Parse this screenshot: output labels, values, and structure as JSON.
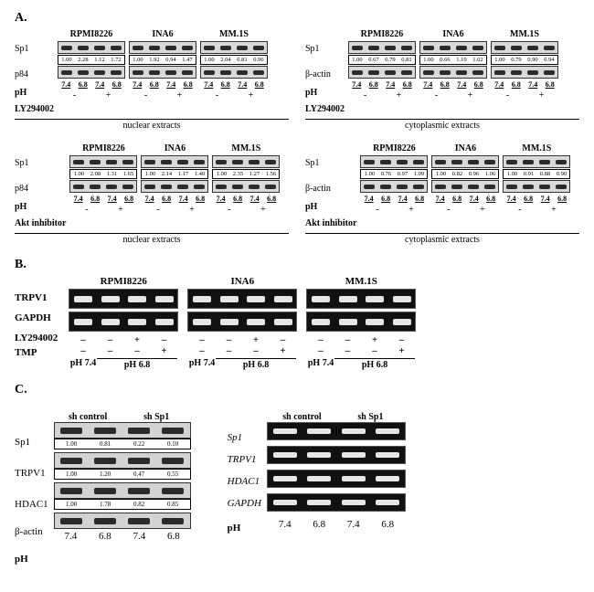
{
  "panelA": {
    "label": "A.",
    "cells": [
      "RPMI8226",
      "INA6",
      "MM.1S"
    ],
    "ph_values": [
      "7.4",
      "6.8",
      "7.4",
      "6.8"
    ],
    "inhibitors": [
      "LY294002",
      "Akt inhibitor"
    ],
    "rowlabels_nuclear": {
      "sp1": "Sp1",
      "loading": "p84"
    },
    "rowlabels_cyto": {
      "sp1": "Sp1",
      "loading": "β-actin"
    },
    "extract_labels": {
      "nuclear": "nuclear extracts",
      "cyto": "cytoplasmic extracts"
    },
    "ph_label": "pH",
    "inh_states": [
      "-",
      "+"
    ],
    "blocks": [
      {
        "inhibitor": "LY294002",
        "nuclear": [
          {
            "cell": "RPMI8226",
            "vals": [
              "1.00",
              "2.28",
              "1.12",
              "1.72"
            ]
          },
          {
            "cell": "INA6",
            "vals": [
              "1.00",
              "1.92",
              "0.94",
              "1.47"
            ]
          },
          {
            "cell": "MM.1S",
            "vals": [
              "1.00",
              "2.04",
              "0.81",
              "0.96"
            ]
          }
        ],
        "cyto": [
          {
            "cell": "RPMI8226",
            "vals": [
              "1.00",
              "0.67",
              "0.79",
              "0.81"
            ]
          },
          {
            "cell": "INA6",
            "vals": [
              "1.00",
              "0.66",
              "1.19",
              "1.02"
            ]
          },
          {
            "cell": "MM.1S",
            "vals": [
              "1.00",
              "0.79",
              "0.90",
              "0.94"
            ]
          }
        ]
      },
      {
        "inhibitor": "Akt inhibitor",
        "nuclear": [
          {
            "cell": "RPMI8226",
            "vals": [
              "1.00",
              "2.08",
              "1.31",
              "1.65"
            ]
          },
          {
            "cell": "INA6",
            "vals": [
              "1.00",
              "2.14",
              "1.17",
              "1.40"
            ]
          },
          {
            "cell": "MM.1S",
            "vals": [
              "1.00",
              "2.35",
              "1.27",
              "1.56"
            ]
          }
        ],
        "cyto": [
          {
            "cell": "RPMI8226",
            "vals": [
              "1.00",
              "0.76",
              "0.97",
              "1.09"
            ]
          },
          {
            "cell": "INA6",
            "vals": [
              "1.00",
              "0.82",
              "0.96",
              "1.06"
            ]
          },
          {
            "cell": "MM.1S",
            "vals": [
              "1.00",
              "0.91",
              "0.88",
              "0.90"
            ]
          }
        ]
      }
    ]
  },
  "panelB": {
    "label": "B.",
    "cells": [
      "RPMI8226",
      "INA6",
      "MM.1S"
    ],
    "genes": [
      "TRPV1",
      "GAPDH"
    ],
    "conds": [
      "LY294002",
      "TMP"
    ],
    "cond_matrix": [
      [
        "–",
        "–",
        "+",
        "–"
      ],
      [
        "–",
        "–",
        "–",
        "+"
      ]
    ],
    "ph_row": [
      "pH 7.4",
      "pH 6.8"
    ]
  },
  "panelC": {
    "label": "C.",
    "headers": [
      "sh control",
      "sh Sp1"
    ],
    "ph_label": "pH",
    "ph_vals": [
      "7.4",
      "6.8",
      "7.4",
      "6.8"
    ],
    "western": {
      "rows": [
        {
          "name": "Sp1",
          "vals": [
            "1.00",
            "0.81",
            "0.22",
            "0.10"
          ]
        },
        {
          "name": "TRPV1",
          "vals": [
            "1.00",
            "1.20",
            "0.47",
            "0.55"
          ]
        },
        {
          "name": "HDAC1",
          "vals": [
            "1.00",
            "1.78",
            "0.82",
            "0.85"
          ]
        }
      ],
      "loading": "β-actin"
    },
    "pcr": {
      "genes": [
        "Sp1",
        "TRPV1",
        "HDAC1",
        "GAPDH"
      ]
    }
  }
}
